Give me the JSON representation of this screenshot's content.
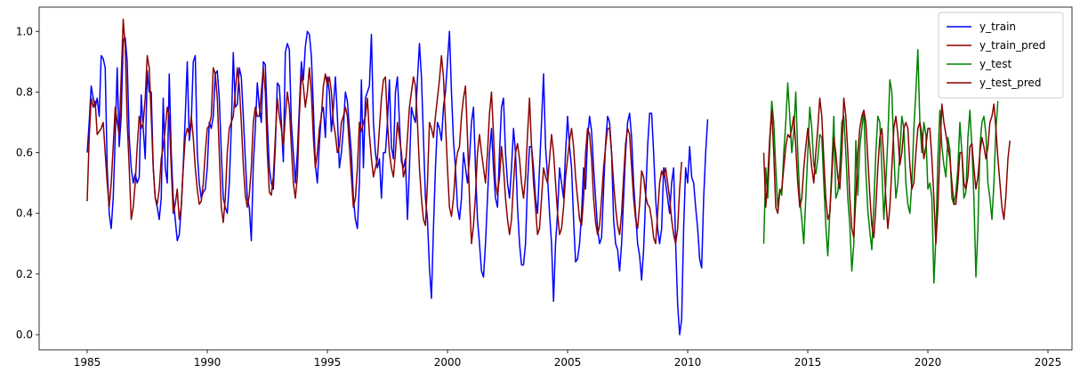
{
  "chart_data": {
    "type": "line",
    "title": "",
    "xlabel": "",
    "ylabel": "",
    "xlim": [
      1983,
      2026
    ],
    "ylim": [
      -0.05,
      1.08
    ],
    "xticks": [
      1985,
      1990,
      1995,
      2000,
      2005,
      2010,
      2015,
      2020,
      2025
    ],
    "yticks": [
      0.0,
      0.2,
      0.4,
      0.6,
      0.8,
      1.0
    ],
    "xtick_labels": [
      "1985",
      "1990",
      "1995",
      "2000",
      "2005",
      "2010",
      "2015",
      "2020",
      "2025"
    ],
    "ytick_labels": [
      "0.0",
      "0.2",
      "0.4",
      "0.6",
      "0.8",
      "1.0"
    ],
    "grid": false,
    "legend_position": "top-right",
    "series": [
      {
        "name": "y_train",
        "color": "#0000ff",
        "x_start": 1985.0,
        "x_step": 0.08333,
        "values": [
          0.6,
          0.7,
          0.82,
          0.78,
          0.75,
          0.78,
          0.72,
          0.92,
          0.91,
          0.88,
          0.55,
          0.4,
          0.35,
          0.45,
          0.65,
          0.88,
          0.62,
          0.72,
          0.97,
          0.98,
          0.9,
          0.65,
          0.55,
          0.5,
          0.53,
          0.5,
          0.52,
          0.79,
          0.68,
          0.58,
          0.87,
          0.8,
          0.8,
          0.55,
          0.45,
          0.42,
          0.38,
          0.45,
          0.78,
          0.55,
          0.5,
          0.86,
          0.6,
          0.45,
          0.38,
          0.31,
          0.33,
          0.42,
          0.56,
          0.72,
          0.9,
          0.64,
          0.7,
          0.9,
          0.92,
          0.6,
          0.5,
          0.45,
          0.47,
          0.48,
          0.55,
          0.7,
          0.68,
          0.72,
          0.86,
          0.87,
          0.78,
          0.6,
          0.45,
          0.42,
          0.4,
          0.5,
          0.68,
          0.93,
          0.75,
          0.76,
          0.88,
          0.85,
          0.72,
          0.58,
          0.45,
          0.42,
          0.31,
          0.56,
          0.68,
          0.83,
          0.75,
          0.7,
          0.9,
          0.89,
          0.7,
          0.55,
          0.5,
          0.48,
          0.62,
          0.83,
          0.82,
          0.7,
          0.57,
          0.93,
          0.96,
          0.94,
          0.7,
          0.6,
          0.5,
          0.6,
          0.75,
          0.9,
          0.84,
          0.95,
          1.0,
          0.99,
          0.92,
          0.75,
          0.56,
          0.5,
          0.63,
          0.73,
          0.75,
          0.65,
          0.85,
          0.8,
          0.67,
          0.75,
          0.85,
          0.72,
          0.55,
          0.6,
          0.68,
          0.8,
          0.77,
          0.68,
          0.6,
          0.45,
          0.38,
          0.35,
          0.5,
          0.84,
          0.55,
          0.78,
          0.8,
          0.82,
          0.99,
          0.7,
          0.6,
          0.55,
          0.58,
          0.45,
          0.6,
          0.6,
          0.7,
          0.84,
          0.62,
          0.58,
          0.8,
          0.85,
          0.7,
          0.57,
          0.55,
          0.58,
          0.38,
          0.55,
          0.75,
          0.72,
          0.7,
          0.84,
          0.96,
          0.85,
          0.65,
          0.45,
          0.38,
          0.22,
          0.12,
          0.35,
          0.55,
          0.7,
          0.68,
          0.64,
          0.75,
          0.8,
          0.9,
          1.0,
          0.8,
          0.64,
          0.55,
          0.42,
          0.38,
          0.45,
          0.6,
          0.55,
          0.5,
          0.58,
          0.7,
          0.75,
          0.55,
          0.38,
          0.3,
          0.21,
          0.19,
          0.3,
          0.45,
          0.6,
          0.68,
          0.55,
          0.45,
          0.42,
          0.6,
          0.75,
          0.78,
          0.6,
          0.5,
          0.45,
          0.55,
          0.68,
          0.6,
          0.42,
          0.3,
          0.23,
          0.23,
          0.3,
          0.5,
          0.62,
          0.62,
          0.55,
          0.45,
          0.4,
          0.55,
          0.7,
          0.86,
          0.62,
          0.52,
          0.4,
          0.3,
          0.11,
          0.3,
          0.4,
          0.55,
          0.5,
          0.45,
          0.6,
          0.72,
          0.62,
          0.55,
          0.38,
          0.24,
          0.25,
          0.3,
          0.4,
          0.55,
          0.48,
          0.65,
          0.72,
          0.67,
          0.55,
          0.45,
          0.35,
          0.3,
          0.32,
          0.48,
          0.63,
          0.72,
          0.7,
          0.6,
          0.38,
          0.3,
          0.28,
          0.21,
          0.3,
          0.45,
          0.6,
          0.7,
          0.73,
          0.65,
          0.5,
          0.4,
          0.3,
          0.26,
          0.18,
          0.28,
          0.45,
          0.62,
          0.73,
          0.73,
          0.6,
          0.45,
          0.35,
          0.3,
          0.35,
          0.55,
          0.5,
          0.45,
          0.4,
          0.5,
          0.55,
          0.3,
          0.1,
          0.0,
          0.05,
          0.35,
          0.55,
          0.5,
          0.62,
          0.52,
          0.5,
          0.42,
          0.35,
          0.25,
          0.22,
          0.45,
          0.6,
          0.71
        ]
      },
      {
        "name": "y_train_pred",
        "color": "#8b0000",
        "x_start": 1985.0,
        "x_step": 0.08333,
        "values": [
          0.44,
          0.65,
          0.78,
          0.75,
          0.77,
          0.66,
          0.67,
          0.68,
          0.7,
          0.6,
          0.5,
          0.42,
          0.5,
          0.62,
          0.75,
          0.7,
          0.66,
          0.85,
          1.04,
          0.95,
          0.7,
          0.55,
          0.38,
          0.42,
          0.5,
          0.62,
          0.72,
          0.68,
          0.7,
          0.78,
          0.92,
          0.88,
          0.72,
          0.55,
          0.45,
          0.43,
          0.48,
          0.58,
          0.62,
          0.68,
          0.75,
          0.72,
          0.55,
          0.4,
          0.43,
          0.48,
          0.38,
          0.42,
          0.55,
          0.65,
          0.68,
          0.66,
          0.72,
          0.65,
          0.55,
          0.48,
          0.43,
          0.44,
          0.5,
          0.6,
          0.68,
          0.69,
          0.72,
          0.88,
          0.86,
          0.78,
          0.6,
          0.42,
          0.37,
          0.45,
          0.6,
          0.68,
          0.7,
          0.72,
          0.8,
          0.88,
          0.82,
          0.7,
          0.56,
          0.46,
          0.42,
          0.46,
          0.55,
          0.7,
          0.75,
          0.72,
          0.72,
          0.8,
          0.88,
          0.8,
          0.6,
          0.47,
          0.46,
          0.52,
          0.65,
          0.78,
          0.72,
          0.68,
          0.62,
          0.72,
          0.8,
          0.75,
          0.62,
          0.5,
          0.45,
          0.52,
          0.72,
          0.86,
          0.82,
          0.75,
          0.8,
          0.88,
          0.8,
          0.65,
          0.55,
          0.6,
          0.68,
          0.72,
          0.82,
          0.86,
          0.82,
          0.85,
          0.8,
          0.7,
          0.66,
          0.6,
          0.62,
          0.7,
          0.72,
          0.75,
          0.72,
          0.62,
          0.52,
          0.42,
          0.45,
          0.55,
          0.7,
          0.67,
          0.7,
          0.72,
          0.78,
          0.66,
          0.58,
          0.52,
          0.55,
          0.58,
          0.68,
          0.78,
          0.84,
          0.85,
          0.7,
          0.6,
          0.55,
          0.52,
          0.6,
          0.7,
          0.65,
          0.6,
          0.52,
          0.55,
          0.65,
          0.75,
          0.8,
          0.85,
          0.82,
          0.7,
          0.55,
          0.45,
          0.38,
          0.36,
          0.5,
          0.7,
          0.68,
          0.65,
          0.72,
          0.78,
          0.84,
          0.92,
          0.85,
          0.7,
          0.55,
          0.42,
          0.39,
          0.45,
          0.55,
          0.6,
          0.62,
          0.72,
          0.78,
          0.82,
          0.65,
          0.45,
          0.3,
          0.36,
          0.46,
          0.6,
          0.66,
          0.6,
          0.55,
          0.5,
          0.6,
          0.73,
          0.8,
          0.66,
          0.5,
          0.46,
          0.52,
          0.62,
          0.55,
          0.45,
          0.38,
          0.33,
          0.38,
          0.5,
          0.6,
          0.63,
          0.58,
          0.5,
          0.45,
          0.52,
          0.66,
          0.78,
          0.62,
          0.5,
          0.42,
          0.33,
          0.35,
          0.45,
          0.55,
          0.52,
          0.5,
          0.58,
          0.66,
          0.6,
          0.5,
          0.4,
          0.33,
          0.35,
          0.42,
          0.52,
          0.58,
          0.64,
          0.68,
          0.62,
          0.52,
          0.45,
          0.38,
          0.36,
          0.45,
          0.6,
          0.68,
          0.66,
          0.58,
          0.45,
          0.37,
          0.33,
          0.36,
          0.45,
          0.55,
          0.62,
          0.68,
          0.68,
          0.6,
          0.5,
          0.42,
          0.36,
          0.33,
          0.4,
          0.52,
          0.63,
          0.68,
          0.66,
          0.55,
          0.45,
          0.38,
          0.35,
          0.43,
          0.54,
          0.52,
          0.46,
          0.43,
          0.42,
          0.38,
          0.32,
          0.3,
          0.4,
          0.5,
          0.54,
          0.52,
          0.55,
          0.5,
          0.45,
          0.38,
          0.33,
          0.3,
          0.35,
          0.48,
          0.57
        ]
      },
      {
        "name": "y_test",
        "color": "#008000",
        "x_start": 2013.167,
        "x_step": 0.08333,
        "values": [
          0.3,
          0.55,
          0.45,
          0.62,
          0.77,
          0.7,
          0.55,
          0.42,
          0.48,
          0.46,
          0.6,
          0.7,
          0.83,
          0.72,
          0.6,
          0.67,
          0.8,
          0.6,
          0.45,
          0.38,
          0.3,
          0.45,
          0.6,
          0.75,
          0.68,
          0.56,
          0.53,
          0.58,
          0.66,
          0.65,
          0.5,
          0.36,
          0.26,
          0.4,
          0.55,
          0.72,
          0.45,
          0.47,
          0.55,
          0.7,
          0.72,
          0.6,
          0.45,
          0.36,
          0.21,
          0.3,
          0.64,
          0.46,
          0.62,
          0.68,
          0.74,
          0.54,
          0.41,
          0.34,
          0.28,
          0.43,
          0.6,
          0.72,
          0.7,
          0.55,
          0.38,
          0.5,
          0.65,
          0.84,
          0.8,
          0.6,
          0.45,
          0.5,
          0.6,
          0.72,
          0.68,
          0.5,
          0.43,
          0.4,
          0.5,
          0.68,
          0.8,
          0.94,
          0.7,
          0.6,
          0.7,
          0.66,
          0.48,
          0.5,
          0.45,
          0.17,
          0.32,
          0.58,
          0.74,
          0.62,
          0.56,
          0.52,
          0.65,
          0.61,
          0.45,
          0.43,
          0.47,
          0.55,
          0.7,
          0.6,
          0.45,
          0.47,
          0.65,
          0.74,
          0.62,
          0.45,
          0.19,
          0.35,
          0.62,
          0.7,
          0.72,
          0.66,
          0.5,
          0.45,
          0.38,
          0.5,
          0.68,
          0.77
        ]
      },
      {
        "name": "y_test_pred",
        "color": "#8b0000",
        "x_start": 2013.167,
        "x_step": 0.08333,
        "values": [
          0.6,
          0.42,
          0.52,
          0.65,
          0.74,
          0.6,
          0.42,
          0.4,
          0.47,
          0.48,
          0.55,
          0.62,
          0.66,
          0.65,
          0.68,
          0.72,
          0.62,
          0.5,
          0.42,
          0.45,
          0.55,
          0.62,
          0.68,
          0.62,
          0.55,
          0.5,
          0.6,
          0.68,
          0.78,
          0.72,
          0.58,
          0.45,
          0.38,
          0.4,
          0.52,
          0.65,
          0.6,
          0.52,
          0.48,
          0.6,
          0.78,
          0.72,
          0.6,
          0.45,
          0.35,
          0.32,
          0.45,
          0.6,
          0.68,
          0.72,
          0.74,
          0.7,
          0.58,
          0.46,
          0.36,
          0.32,
          0.42,
          0.55,
          0.65,
          0.68,
          0.58,
          0.45,
          0.35,
          0.42,
          0.55,
          0.68,
          0.72,
          0.66,
          0.56,
          0.6,
          0.68,
          0.7,
          0.68,
          0.56,
          0.48,
          0.5,
          0.6,
          0.68,
          0.7,
          0.66,
          0.58,
          0.62,
          0.68,
          0.68,
          0.58,
          0.45,
          0.3,
          0.42,
          0.6,
          0.76,
          0.7,
          0.66,
          0.62,
          0.58,
          0.5,
          0.43,
          0.43,
          0.5,
          0.6,
          0.6,
          0.5,
          0.48,
          0.52,
          0.62,
          0.63,
          0.55,
          0.48,
          0.52,
          0.6,
          0.65,
          0.62,
          0.58,
          0.62,
          0.7,
          0.72,
          0.76,
          0.68,
          0.58,
          0.5,
          0.42,
          0.38,
          0.46,
          0.58,
          0.64
        ]
      }
    ]
  }
}
